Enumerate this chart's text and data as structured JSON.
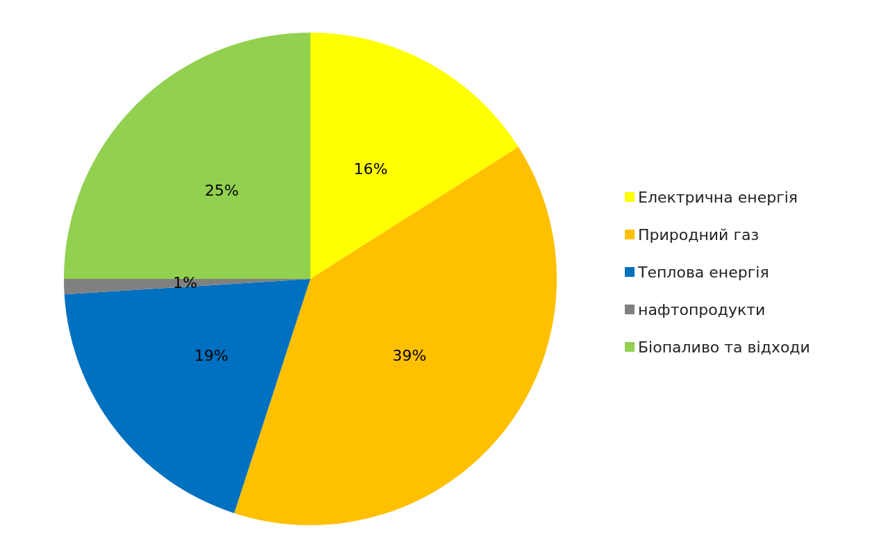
{
  "chart_data": {
    "type": "pie",
    "categories": [
      "Електрична енергія",
      "Природний газ",
      "Теплова енергія",
      "нафтопродукти",
      "Біопаливо та відходи"
    ],
    "values": [
      16,
      39,
      19,
      1,
      25
    ],
    "colors": [
      "#ffff00",
      "#ffc000",
      "#0070c0",
      "#808080",
      "#92d050"
    ],
    "value_labels": [
      "16%",
      "39%",
      "19%",
      "1%",
      "25%"
    ],
    "legend": "right"
  }
}
